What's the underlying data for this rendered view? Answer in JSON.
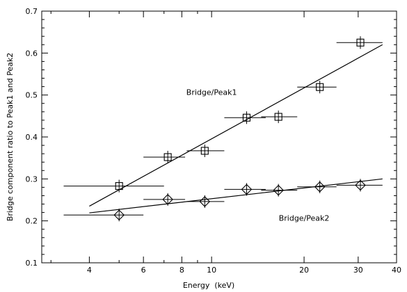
{
  "chart_data": {
    "type": "scatter",
    "xlabel": "Energy  (keV)",
    "ylabel": "Bridge component ratio to Peak1 and Peak2",
    "x_scale": "log",
    "xlim": [
      2.8,
      40
    ],
    "ylim": [
      0.1,
      0.7
    ],
    "x_ticks": [
      4,
      6,
      8,
      10,
      20,
      30,
      40
    ],
    "x_tick_labels": [
      "4",
      "6",
      "8",
      "10",
      "20",
      "30",
      "40"
    ],
    "y_ticks": [
      0.1,
      0.2,
      0.3,
      0.4,
      0.5,
      0.6,
      0.7
    ],
    "y_tick_labels": [
      "0.1",
      "0.2",
      "0.3",
      "0.4",
      "0.5",
      "0.6",
      "0.7"
    ],
    "grid": false,
    "series": [
      {
        "name": "Bridge/Peak1",
        "marker": "square",
        "points": [
          {
            "x": 5.0,
            "y": 0.283,
            "xerr": [
              3.3,
              7.0
            ],
            "yerr": 0.015
          },
          {
            "x": 7.2,
            "y": 0.352,
            "xerr": [
              6.0,
              8.2
            ],
            "yerr": 0.015
          },
          {
            "x": 9.5,
            "y": 0.367,
            "xerr": [
              8.3,
              11.0
            ],
            "yerr": 0.015
          },
          {
            "x": 13.0,
            "y": 0.446,
            "xerr": [
              11.0,
              15.0
            ],
            "yerr": 0.015
          },
          {
            "x": 16.5,
            "y": 0.448,
            "xerr": [
              14.5,
              19.0
            ],
            "yerr": 0.015
          },
          {
            "x": 22.5,
            "y": 0.519,
            "xerr": [
              19.0,
              25.5
            ],
            "yerr": 0.015
          },
          {
            "x": 30.5,
            "y": 0.625,
            "xerr": [
              25.5,
              36.0
            ],
            "yerr": 0.015
          }
        ],
        "fit": [
          {
            "x": 4.0,
            "y": 0.235
          },
          {
            "x": 36.0,
            "y": 0.62
          }
        ]
      },
      {
        "name": "Bridge/Peak2",
        "marker": "diamond",
        "points": [
          {
            "x": 5.0,
            "y": 0.214,
            "xerr": [
              3.3,
              6.0
            ],
            "yerr": 0.015
          },
          {
            "x": 7.2,
            "y": 0.251,
            "xerr": [
              6.0,
              8.2
            ],
            "yerr": 0.015
          },
          {
            "x": 9.5,
            "y": 0.246,
            "xerr": [
              8.3,
              11.0
            ],
            "yerr": 0.015
          },
          {
            "x": 13.0,
            "y": 0.275,
            "xerr": [
              11.0,
              15.0
            ],
            "yerr": 0.015
          },
          {
            "x": 16.5,
            "y": 0.273,
            "xerr": [
              14.5,
              19.0
            ],
            "yerr": 0.015
          },
          {
            "x": 22.5,
            "y": 0.281,
            "xerr": [
              19.0,
              25.5
            ],
            "yerr": 0.015
          },
          {
            "x": 30.5,
            "y": 0.285,
            "xerr": [
              25.5,
              36.0
            ],
            "yerr": 0.015
          }
        ],
        "fit": [
          {
            "x": 4.0,
            "y": 0.219
          },
          {
            "x": 36.0,
            "y": 0.3
          }
        ]
      }
    ],
    "annotations": [
      {
        "text": "Bridge/Peak1",
        "x": 10.0,
        "y": 0.5
      },
      {
        "text": "Bridge/Peak2",
        "x": 20.0,
        "y": 0.2
      }
    ]
  }
}
